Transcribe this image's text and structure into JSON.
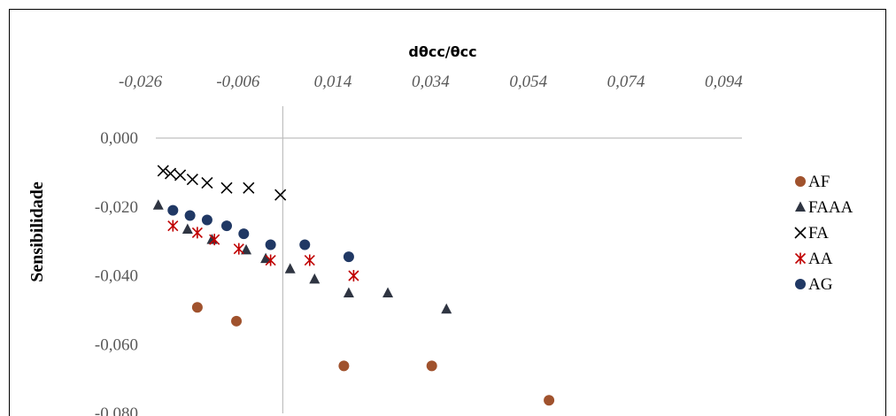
{
  "chart_data": {
    "type": "scatter",
    "xlabel": "dθcc/θcc",
    "ylabel": "Sensibilidade",
    "xlim": [
      -0.026,
      0.094
    ],
    "ylim": [
      -0.08,
      0.0
    ],
    "x_ticks": [
      "-0,026",
      "-0,006",
      "0,014",
      "0,034",
      "0,054",
      "0,074",
      "0,094"
    ],
    "y_ticks": [
      "0,000",
      "-0,020",
      "-0,040",
      "-0,060",
      "-0,080"
    ],
    "y_tick_values": [
      0.0,
      -0.02,
      -0.04,
      -0.06,
      -0.08
    ],
    "x_axis_position": "top",
    "y_axis_crosses_at_x": 0.0,
    "grid": false,
    "legend_position": "right",
    "series": [
      {
        "name": "AF",
        "marker": "circle",
        "color": "#A0522D",
        "points": [
          [
            -0.0175,
            -0.0492
          ],
          [
            -0.0095,
            -0.0532
          ],
          [
            0.0125,
            -0.0662
          ],
          [
            0.0305,
            -0.0662
          ],
          [
            0.0545,
            -0.0762
          ]
        ]
      },
      {
        "name": "FAAA",
        "marker": "triangle",
        "color": "#2F3542",
        "points": [
          [
            -0.0255,
            -0.0195
          ],
          [
            -0.0195,
            -0.0265
          ],
          [
            -0.0145,
            -0.0295
          ],
          [
            -0.0075,
            -0.0325
          ],
          [
            -0.0035,
            -0.035
          ],
          [
            0.0015,
            -0.038
          ],
          [
            0.0065,
            -0.041
          ],
          [
            0.0135,
            -0.045
          ],
          [
            0.0215,
            -0.045
          ],
          [
            0.0335,
            -0.0497
          ]
        ]
      },
      {
        "name": "FA",
        "marker": "x",
        "color": "#000000",
        "points": [
          [
            -0.0245,
            -0.0095
          ],
          [
            -0.023,
            -0.0103
          ],
          [
            -0.021,
            -0.0108
          ],
          [
            -0.0185,
            -0.012
          ],
          [
            -0.0155,
            -0.013
          ],
          [
            -0.0115,
            -0.0145
          ],
          [
            -0.007,
            -0.0145
          ],
          [
            -0.0005,
            -0.0165
          ]
        ]
      },
      {
        "name": "AA",
        "marker": "asterisk",
        "color": "#C00000",
        "points": [
          [
            -0.0225,
            -0.0255
          ],
          [
            -0.0175,
            -0.0275
          ],
          [
            -0.014,
            -0.0295
          ],
          [
            -0.009,
            -0.0322
          ],
          [
            -0.0025,
            -0.0355
          ],
          [
            0.0055,
            -0.0355
          ],
          [
            0.0145,
            -0.04
          ]
        ]
      },
      {
        "name": "AG",
        "marker": "circle",
        "color": "#203864",
        "points": [
          [
            -0.0225,
            -0.021
          ],
          [
            -0.019,
            -0.0225
          ],
          [
            -0.0155,
            -0.0238
          ],
          [
            -0.0115,
            -0.0255
          ],
          [
            -0.008,
            -0.0278
          ],
          [
            -0.0025,
            -0.031
          ],
          [
            0.0045,
            -0.031
          ],
          [
            0.0135,
            -0.0345
          ]
        ]
      }
    ]
  }
}
